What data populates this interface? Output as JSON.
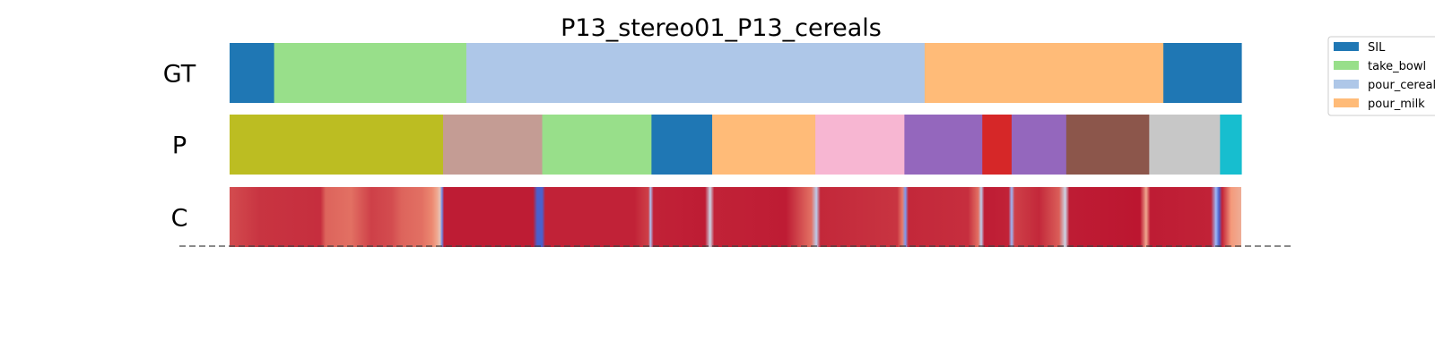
{
  "chart_data": {
    "type": "segmentation",
    "title": "P13_stereo01_P13_cereals",
    "rows": [
      {
        "label": "GT",
        "segments": [
          {
            "start": 0.0,
            "end": 0.044,
            "class": "SIL"
          },
          {
            "start": 0.044,
            "end": 0.234,
            "class": "take_bowl"
          },
          {
            "start": 0.234,
            "end": 0.687,
            "class": "pour_cereals"
          },
          {
            "start": 0.687,
            "end": 0.923,
            "class": "pour_milk"
          },
          {
            "start": 0.923,
            "end": 1.0,
            "class": "SIL"
          }
        ]
      },
      {
        "label": "P",
        "segments": [
          {
            "start": 0.0,
            "end": 0.211,
            "color": "#bcbd22"
          },
          {
            "start": 0.211,
            "end": 0.309,
            "color": "#c49c94"
          },
          {
            "start": 0.309,
            "end": 0.417,
            "color": "#98df8a"
          },
          {
            "start": 0.417,
            "end": 0.477,
            "color": "#1f77b4"
          },
          {
            "start": 0.477,
            "end": 0.579,
            "color": "#ffbb78"
          },
          {
            "start": 0.579,
            "end": 0.667,
            "color": "#f7b6d2"
          },
          {
            "start": 0.667,
            "end": 0.744,
            "color": "#9467bd"
          },
          {
            "start": 0.744,
            "end": 0.773,
            "color": "#d62728"
          },
          {
            "start": 0.773,
            "end": 0.827,
            "color": "#9467bd"
          },
          {
            "start": 0.827,
            "end": 0.909,
            "color": "#8c564b"
          },
          {
            "start": 0.909,
            "end": 0.979,
            "color": "#c7c7c7"
          },
          {
            "start": 0.979,
            "end": 1.0,
            "color": "#17becf"
          }
        ]
      },
      {
        "label": "C",
        "colormap": "coolwarm",
        "confidence": [
          [
            0.0,
            0.88
          ],
          [
            0.03,
            0.92
          ],
          [
            0.09,
            0.93
          ],
          [
            0.095,
            0.84
          ],
          [
            0.12,
            0.82
          ],
          [
            0.14,
            0.9
          ],
          [
            0.16,
            0.88
          ],
          [
            0.17,
            0.84
          ],
          [
            0.19,
            0.82
          ],
          [
            0.2,
            0.78
          ],
          [
            0.205,
            0.7
          ],
          [
            0.208,
            0.6
          ],
          [
            0.21,
            0.15
          ],
          [
            0.212,
            0.96
          ],
          [
            0.3,
            0.96
          ],
          [
            0.304,
            0.05
          ],
          [
            0.309,
            0.05
          ],
          [
            0.312,
            0.95
          ],
          [
            0.4,
            0.95
          ],
          [
            0.414,
            0.9
          ],
          [
            0.416,
            0.35
          ],
          [
            0.419,
            0.95
          ],
          [
            0.47,
            0.96
          ],
          [
            0.475,
            0.45
          ],
          [
            0.479,
            0.95
          ],
          [
            0.55,
            0.96
          ],
          [
            0.575,
            0.82
          ],
          [
            0.58,
            0.4
          ],
          [
            0.584,
            0.94
          ],
          [
            0.66,
            0.92
          ],
          [
            0.665,
            0.8
          ],
          [
            0.668,
            0.2
          ],
          [
            0.671,
            0.94
          ],
          [
            0.73,
            0.93
          ],
          [
            0.74,
            0.82
          ],
          [
            0.743,
            0.4
          ],
          [
            0.746,
            0.96
          ],
          [
            0.77,
            0.95
          ],
          [
            0.773,
            0.3
          ],
          [
            0.776,
            0.9
          ],
          [
            0.8,
            0.94
          ],
          [
            0.82,
            0.85
          ],
          [
            0.826,
            0.45
          ],
          [
            0.83,
            0.96
          ],
          [
            0.9,
            0.97
          ],
          [
            0.906,
            0.7
          ],
          [
            0.91,
            0.96
          ],
          [
            0.97,
            0.95
          ],
          [
            0.975,
            0.3
          ],
          [
            0.978,
            0.05
          ],
          [
            0.981,
            0.95
          ],
          [
            0.99,
            0.75
          ],
          [
            1.0,
            0.68
          ]
        ]
      }
    ],
    "legend": {
      "position": "top-right",
      "entries": [
        {
          "label": "SIL",
          "class": "SIL"
        },
        {
          "label": "take_bowl",
          "class": "take_bowl"
        },
        {
          "label": "pour_cereals",
          "class": "pour_cereals"
        },
        {
          "label": "pour_milk",
          "class": "pour_milk"
        }
      ]
    },
    "colors": {
      "SIL": "#1f77b4",
      "take_bowl": "#98df8a",
      "pour_cereals": "#aec7e8",
      "pour_milk": "#ffbb78"
    },
    "baseline_style": "dashed",
    "grid": false
  }
}
